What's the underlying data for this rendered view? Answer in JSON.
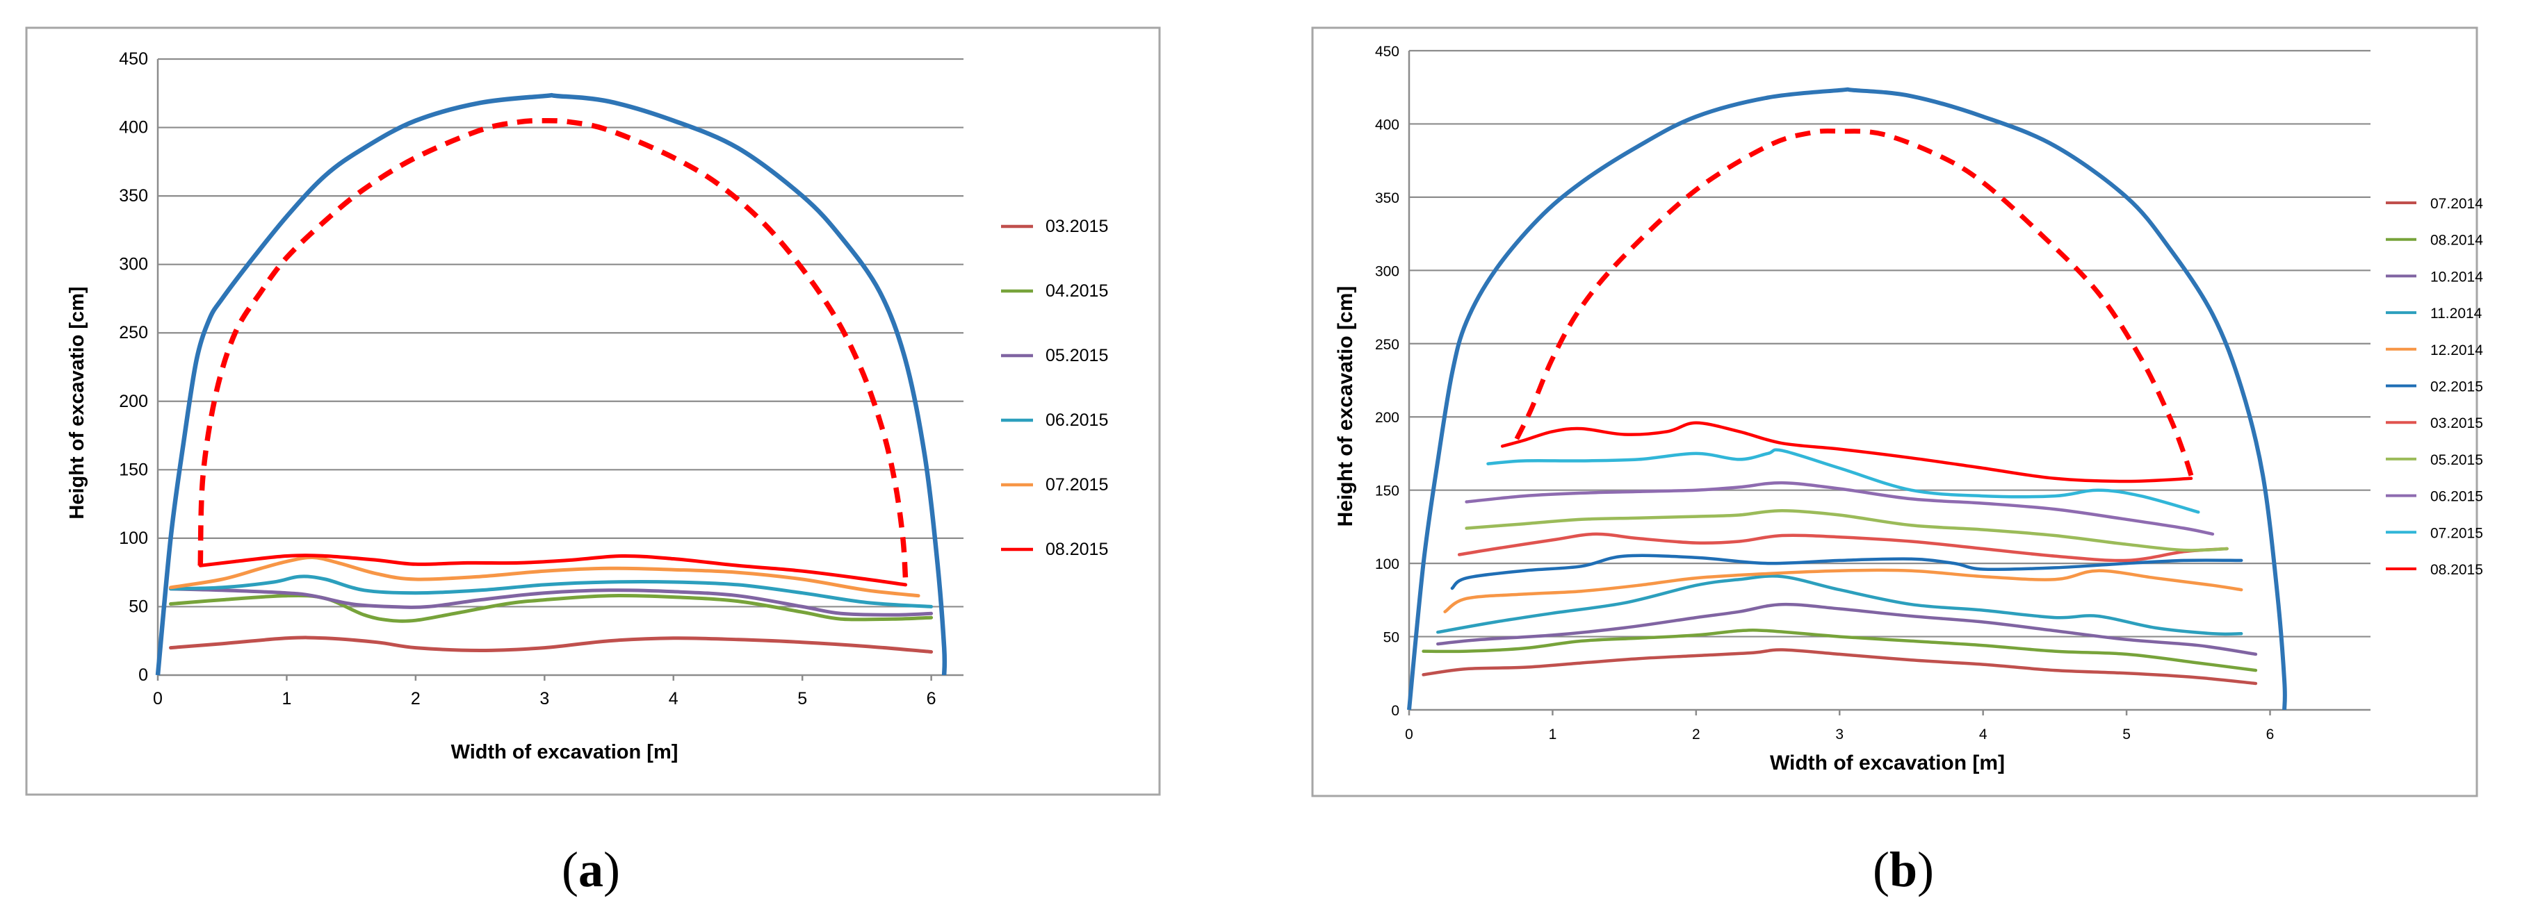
{
  "chart_data": [
    {
      "type": "line",
      "panel_label": "a",
      "title": "",
      "xlabel": "Width of excavation [m]",
      "ylabel": "Height of excavatio [cm]",
      "xlim": [
        0,
        6.25
      ],
      "ylim": [
        0,
        450
      ],
      "xticks": [
        "0",
        "1",
        "2",
        "3",
        "4",
        "5",
        "6"
      ],
      "yticks": [
        "0",
        "50",
        "100",
        "150",
        "200",
        "250",
        "300",
        "350",
        "400",
        "450"
      ],
      "legend_position": "right",
      "profile": {
        "name": "excavation profile",
        "color": "#2e75b6",
        "x": [
          0,
          0.1,
          0.2,
          0.3,
          0.4,
          0.5,
          0.7,
          1.0,
          1.3,
          1.6,
          2.0,
          2.5,
          3.0,
          3.1,
          3.5,
          4.0,
          4.5,
          5.0,
          5.3,
          5.6,
          5.8,
          5.95,
          6.05,
          6.1,
          6.1
        ],
        "y": [
          0,
          100,
          170,
          230,
          260,
          275,
          300,
          335,
          365,
          385,
          405,
          418,
          423,
          423,
          419,
          405,
          385,
          350,
          320,
          280,
          230,
          160,
          80,
          20,
          0
        ]
      },
      "planned_profile": {
        "name": "planned profile",
        "color": "#ff0000",
        "x": [
          0.33,
          0.35,
          0.45,
          0.6,
          0.8,
          1.0,
          1.3,
          1.6,
          2.0,
          2.5,
          2.8,
          3.0,
          3.2,
          3.5,
          4.0,
          4.4,
          4.8,
          5.2,
          5.45,
          5.62,
          5.72,
          5.78,
          5.8
        ],
        "y": [
          80,
          145,
          205,
          250,
          280,
          305,
          332,
          355,
          378,
          398,
          404,
          405,
          404,
          398,
          378,
          355,
          320,
          270,
          225,
          180,
          140,
          100,
          70
        ]
      },
      "series": [
        {
          "name": "03.2015",
          "color": "#c0504d",
          "x": [
            0.1,
            0.5,
            1.0,
            1.3,
            1.7,
            2.0,
            2.5,
            3.0,
            3.5,
            4.0,
            4.5,
            5.0,
            5.5,
            6.0
          ],
          "y": [
            20,
            23,
            27,
            27,
            24,
            20,
            18,
            20,
            25,
            27,
            26,
            24,
            21,
            17
          ]
        },
        {
          "name": "04.2015",
          "color": "#77a33a",
          "x": [
            0.1,
            0.5,
            1.0,
            1.3,
            1.6,
            1.8,
            2.0,
            2.3,
            2.7,
            3.0,
            3.5,
            4.0,
            4.5,
            5.0,
            5.3,
            5.7,
            6.0
          ],
          "y": [
            52,
            55,
            58,
            56,
            44,
            40,
            40,
            45,
            52,
            55,
            58,
            57,
            54,
            46,
            41,
            41,
            42
          ]
        },
        {
          "name": "05.2015",
          "color": "#8064a2",
          "x": [
            0.1,
            0.5,
            1.0,
            1.2,
            1.5,
            1.8,
            2.1,
            2.5,
            3.0,
            3.5,
            4.0,
            4.5,
            5.0,
            5.3,
            5.7,
            6.0
          ],
          "y": [
            63,
            62,
            60,
            58,
            52,
            50,
            50,
            55,
            60,
            62,
            61,
            58,
            50,
            45,
            44,
            45
          ]
        },
        {
          "name": "06.2015",
          "color": "#2c9fbd",
          "x": [
            0.1,
            0.5,
            0.9,
            1.1,
            1.3,
            1.6,
            2.0,
            2.5,
            3.0,
            3.5,
            4.0,
            4.5,
            5.0,
            5.5,
            6.0
          ],
          "y": [
            63,
            64,
            68,
            72,
            70,
            62,
            60,
            62,
            66,
            68,
            68,
            66,
            60,
            53,
            50
          ]
        },
        {
          "name": "07.2015",
          "color": "#f79646",
          "x": [
            0.1,
            0.5,
            0.8,
            1.0,
            1.2,
            1.4,
            1.7,
            2.0,
            2.5,
            3.0,
            3.5,
            4.0,
            4.5,
            5.0,
            5.5,
            5.9
          ],
          "y": [
            64,
            70,
            78,
            83,
            86,
            82,
            74,
            70,
            72,
            76,
            78,
            77,
            75,
            70,
            62,
            58
          ]
        },
        {
          "name": "08.2015",
          "color": "#ff0000",
          "x": [
            0.33,
            0.6,
            1.0,
            1.3,
            1.7,
            2.0,
            2.4,
            2.8,
            3.2,
            3.6,
            4.0,
            4.5,
            5.0,
            5.5,
            5.8
          ],
          "y": [
            80,
            83,
            87,
            87,
            84,
            81,
            82,
            82,
            84,
            87,
            85,
            80,
            76,
            70,
            66
          ]
        }
      ]
    },
    {
      "type": "line",
      "panel_label": "b",
      "title": "",
      "xlabel": "Width of excavation [m]",
      "ylabel": "Height of excavatio [cm]",
      "xlim": [
        0,
        6.7
      ],
      "ylim": [
        0,
        450
      ],
      "xticks": [
        "0",
        "1",
        "2",
        "3",
        "4",
        "5",
        "6"
      ],
      "yticks": [
        "0",
        "50",
        "100",
        "150",
        "200",
        "250",
        "300",
        "350",
        "400",
        "450"
      ],
      "legend_position": "right",
      "profile": {
        "name": "excavation profile",
        "color": "#2e75b6",
        "x": [
          0,
          0.1,
          0.2,
          0.3,
          0.4,
          0.6,
          0.9,
          1.2,
          1.6,
          2.0,
          2.5,
          3.0,
          3.1,
          3.5,
          4.0,
          4.5,
          5.0,
          5.3,
          5.6,
          5.8,
          5.95,
          6.05,
          6.1,
          6.1
        ],
        "y": [
          0,
          100,
          170,
          230,
          265,
          300,
          335,
          360,
          385,
          405,
          418,
          423,
          423,
          419,
          405,
          385,
          350,
          315,
          270,
          220,
          160,
          80,
          20,
          0
        ]
      },
      "planned_profile": {
        "name": "planned profile",
        "color": "#ff0000",
        "x": [
          0.75,
          0.85,
          1.0,
          1.2,
          1.5,
          2.0,
          2.5,
          2.8,
          3.0,
          3.3,
          3.7,
          4.0,
          4.4,
          4.8,
          5.1,
          5.3,
          5.4,
          5.45
        ],
        "y": [
          185,
          205,
          240,
          275,
          310,
          355,
          385,
          394,
          395,
          393,
          378,
          360,
          325,
          285,
          240,
          200,
          175,
          160
        ]
      },
      "series": [
        {
          "name": "07.2014",
          "color": "#c0504d",
          "x": [
            0.1,
            0.4,
            0.8,
            1.2,
            1.6,
            2.0,
            2.4,
            2.6,
            3.0,
            3.5,
            4.0,
            4.5,
            5.0,
            5.5,
            5.9
          ],
          "y": [
            24,
            28,
            29,
            32,
            35,
            37,
            39,
            41,
            38,
            34,
            31,
            27,
            25,
            22,
            18
          ]
        },
        {
          "name": "08.2014",
          "color": "#77a33a",
          "x": [
            0.1,
            0.4,
            0.8,
            1.2,
            1.6,
            2.0,
            2.3,
            2.5,
            3.0,
            3.5,
            4.0,
            4.5,
            5.0,
            5.5,
            5.9
          ],
          "y": [
            40,
            40,
            42,
            47,
            49,
            51,
            54,
            54,
            50,
            47,
            44,
            40,
            38,
            32,
            27
          ]
        },
        {
          "name": "10.2014",
          "color": "#8064a2",
          "x": [
            0.2,
            0.5,
            1.0,
            1.5,
            2.0,
            2.3,
            2.6,
            3.0,
            3.5,
            4.0,
            4.5,
            5.0,
            5.5,
            5.9
          ],
          "y": [
            45,
            48,
            51,
            56,
            63,
            67,
            72,
            69,
            64,
            60,
            54,
            48,
            44,
            38
          ]
        },
        {
          "name": "11.2014",
          "color": "#2c9fbd",
          "x": [
            0.2,
            0.6,
            1.0,
            1.5,
            2.0,
            2.3,
            2.6,
            3.0,
            3.5,
            4.0,
            4.5,
            4.8,
            5.2,
            5.6,
            5.8
          ],
          "y": [
            53,
            60,
            66,
            73,
            85,
            89,
            91,
            82,
            72,
            68,
            63,
            64,
            56,
            52,
            52
          ]
        },
        {
          "name": "12.2014",
          "color": "#f79646",
          "x": [
            0.25,
            0.4,
            0.8,
            1.2,
            1.6,
            2.0,
            2.5,
            3.0,
            3.5,
            4.0,
            4.5,
            4.8,
            5.2,
            5.6,
            5.8
          ],
          "y": [
            67,
            76,
            79,
            81,
            85,
            90,
            93,
            95,
            95,
            91,
            89,
            95,
            90,
            85,
            82
          ]
        },
        {
          "name": "02.2015",
          "color": "#1f6eb5",
          "x": [
            0.3,
            0.4,
            0.8,
            1.2,
            1.5,
            2.0,
            2.5,
            3.0,
            3.5,
            3.8,
            4.0,
            4.5,
            5.0,
            5.4,
            5.8
          ],
          "y": [
            83,
            90,
            95,
            98,
            105,
            104,
            100,
            102,
            103,
            100,
            96,
            97,
            100,
            102,
            102
          ]
        },
        {
          "name": "03.2015",
          "color": "#e0534f",
          "x": [
            0.35,
            0.6,
            1.0,
            1.3,
            1.6,
            2.0,
            2.3,
            2.6,
            3.0,
            3.5,
            4.0,
            4.5,
            5.0,
            5.4,
            5.7
          ],
          "y": [
            106,
            110,
            116,
            120,
            117,
            114,
            115,
            119,
            118,
            115,
            110,
            105,
            102,
            108,
            110
          ]
        },
        {
          "name": "05.2015",
          "color": "#9bbb59",
          "x": [
            0.4,
            0.8,
            1.2,
            1.6,
            2.0,
            2.3,
            2.6,
            3.0,
            3.5,
            4.0,
            4.5,
            5.0,
            5.4,
            5.7
          ],
          "y": [
            124,
            127,
            130,
            131,
            132,
            133,
            136,
            133,
            126,
            123,
            119,
            113,
            109,
            110
          ]
        },
        {
          "name": "06.2015",
          "color": "#8e6bb0",
          "x": [
            0.4,
            0.8,
            1.2,
            1.6,
            2.0,
            2.3,
            2.6,
            3.0,
            3.5,
            4.0,
            4.5,
            5.0,
            5.4,
            5.6
          ],
          "y": [
            142,
            146,
            148,
            149,
            150,
            152,
            155,
            151,
            144,
            141,
            137,
            130,
            124,
            120
          ]
        },
        {
          "name": "07.2015",
          "color": "#31b6d8",
          "x": [
            0.55,
            0.8,
            1.2,
            1.6,
            2.0,
            2.3,
            2.5,
            2.6,
            3.0,
            3.5,
            4.0,
            4.5,
            4.8,
            5.1,
            5.5
          ],
          "y": [
            168,
            170,
            170,
            171,
            175,
            171,
            175,
            177,
            165,
            150,
            146,
            146,
            150,
            146,
            135
          ]
        },
        {
          "name": "08.2015",
          "color": "#ff0000",
          "x": [
            0.65,
            0.8,
            1.0,
            1.2,
            1.5,
            1.8,
            2.0,
            2.3,
            2.6,
            3.0,
            3.5,
            4.0,
            4.5,
            5.0,
            5.45
          ],
          "y": [
            180,
            184,
            190,
            192,
            188,
            190,
            196,
            190,
            182,
            178,
            172,
            165,
            158,
            156,
            158
          ]
        }
      ]
    }
  ]
}
